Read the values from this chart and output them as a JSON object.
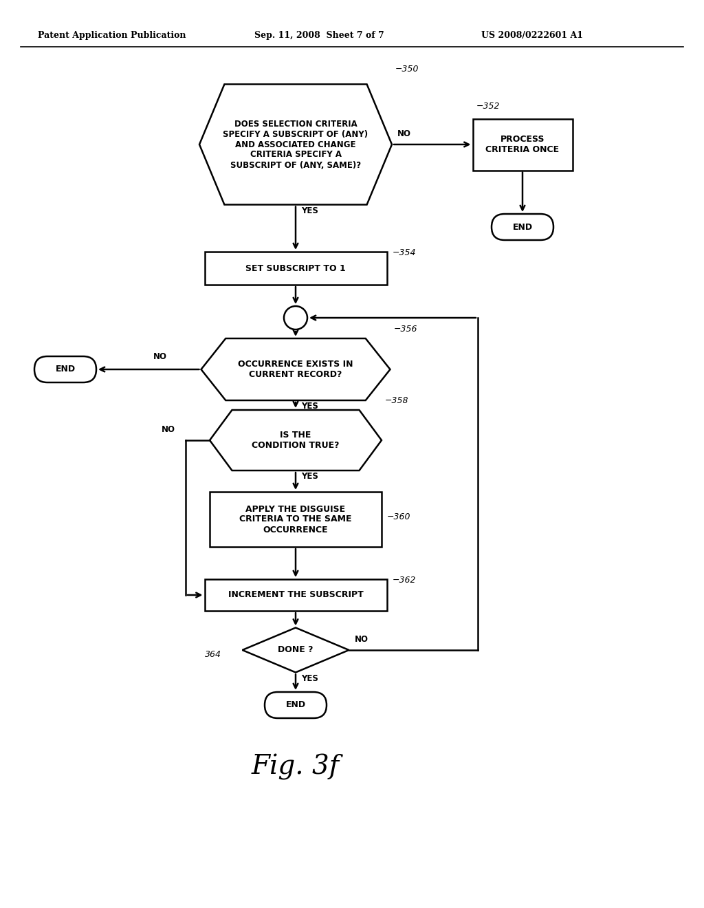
{
  "header_left": "Patent Application Publication",
  "header_mid": "Sep. 11, 2008  Sheet 7 of 7",
  "header_right": "US 2008/0222601 A1",
  "figure_label": "Fig. 3f",
  "bg_color": "#ffffff",
  "line_color": "#000000"
}
